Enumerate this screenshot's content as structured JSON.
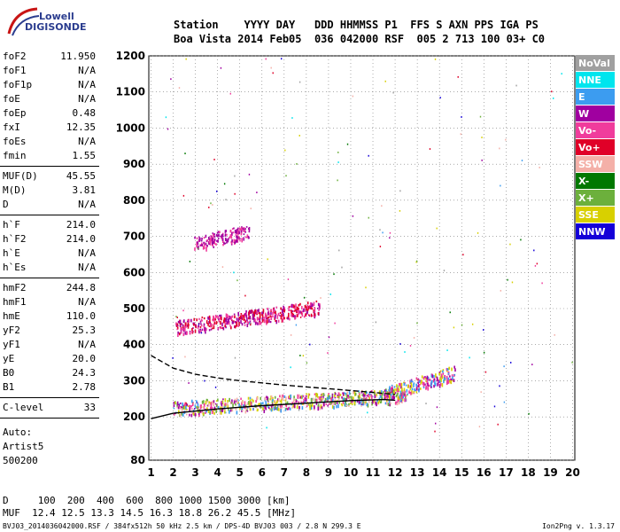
{
  "logo": {
    "line1": "Lowell",
    "line2": "DIGISONDE"
  },
  "header": {
    "line1": "Station    YYYY DAY   DDD HHMMSS P1  FFS S AXN PPS IGA PS",
    "line2": "Boa Vista 2014 Feb05  036 042000 RSF  005 2 713 100 03+ C0"
  },
  "params": {
    "group1": [
      {
        "label": "foF2",
        "value": "11.950"
      },
      {
        "label": "foF1",
        "value": "N/A"
      },
      {
        "label": "foF1p",
        "value": "N/A"
      },
      {
        "label": "foE",
        "value": "N/A"
      },
      {
        "label": "foEp",
        "value": "0.48"
      },
      {
        "label": "fxI",
        "value": "12.35"
      },
      {
        "label": "foEs",
        "value": "N/A"
      },
      {
        "label": "fmin",
        "value": "1.55"
      }
    ],
    "group2": [
      {
        "label": "MUF(D)",
        "value": "45.55"
      },
      {
        "label": "M(D)",
        "value": "3.81"
      },
      {
        "label": "D",
        "value": "N/A"
      }
    ],
    "group3": [
      {
        "label": "h`F",
        "value": "214.0"
      },
      {
        "label": "h`F2",
        "value": "214.0"
      },
      {
        "label": "h`E",
        "value": "N/A"
      },
      {
        "label": "h`Es",
        "value": "N/A"
      }
    ],
    "group4": [
      {
        "label": "hmF2",
        "value": "244.8"
      },
      {
        "label": "hmF1",
        "value": "N/A"
      },
      {
        "label": "hmE",
        "value": "110.0"
      },
      {
        "label": "yF2",
        "value": "25.3"
      },
      {
        "label": "yF1",
        "value": "N/A"
      },
      {
        "label": "yE",
        "value": "20.0"
      },
      {
        "label": "B0",
        "value": "24.3"
      },
      {
        "label": "B1",
        "value": "2.78"
      }
    ],
    "group5": [
      {
        "label": "C-level",
        "value": "33"
      }
    ]
  },
  "auto": {
    "line1": "Auto:",
    "line2": "Artist5",
    "line3": "500200"
  },
  "footer": {
    "d_row": "D     100  200  400  600  800 1000 1500 3000 [km]",
    "muf_row": "MUF  12.4 12.5 13.3 14.5 16.3 18.8 26.2 45.5 [MHz]",
    "file_info": "BVJ03_2014036042000.RSF / 384fx512h 50 kHz 2.5 km / DPS-4D BVJ03 003 / 2.8 N 299.3 E",
    "version": "Ion2Png v. 1.3.17"
  },
  "legend": [
    {
      "label": "NoVal",
      "color": "#a0a0a0"
    },
    {
      "label": "NNE",
      "color": "#00e5ee"
    },
    {
      "label": "E",
      "color": "#3c9cf0"
    },
    {
      "label": "W",
      "color": "#a000a0"
    },
    {
      "label": "Vo-",
      "color": "#f03c9c"
    },
    {
      "label": "Vo+",
      "color": "#e00028"
    },
    {
      "label": "SSW",
      "color": "#f4b0a8"
    },
    {
      "label": "X-",
      "color": "#007800"
    },
    {
      "label": "X+",
      "color": "#6cb03c"
    },
    {
      "label": "SSE",
      "color": "#d8d000"
    },
    {
      "label": "NNW",
      "color": "#1400d8"
    }
  ],
  "chart_data": {
    "type": "scatter",
    "x_ticks": [
      1,
      2,
      3,
      4,
      5,
      6,
      7,
      8,
      9,
      10,
      11,
      12,
      13,
      14,
      15,
      16,
      17,
      18,
      19,
      20
    ],
    "y_ticks": [
      80,
      200,
      300,
      400,
      500,
      600,
      700,
      800,
      900,
      1000,
      1100,
      1200
    ],
    "xlim": [
      0.9,
      20.1
    ],
    "ylim": [
      80,
      1200
    ],
    "grid": true,
    "legend_position": "right",
    "traces": [
      {
        "name": "F2 trace",
        "x": [
          2.0,
          12.5
        ],
        "y": [
          225,
          262
        ],
        "colors": [
          "Vo-",
          "W",
          "E",
          "SSW",
          "X+",
          "SSE"
        ]
      },
      {
        "name": "F2 extension",
        "x": [
          11.5,
          14.7
        ],
        "y": [
          262,
          325
        ],
        "colors": [
          "W",
          "Vo-",
          "SSE",
          "E"
        ]
      },
      {
        "name": "second hop",
        "x": [
          2.1,
          8.6
        ],
        "y": [
          448,
          505
        ],
        "colors": [
          "Vo-",
          "Vo+",
          "W"
        ]
      },
      {
        "name": "third hop",
        "x": [
          2.9,
          5.4
        ],
        "y": [
          680,
          715
        ],
        "colors": [
          "W",
          "Vo-"
        ]
      }
    ],
    "fitted_curves": [
      {
        "style": "solid",
        "points": [
          [
            1.0,
            195
          ],
          [
            2.0,
            210
          ],
          [
            4.0,
            222
          ],
          [
            6.0,
            231
          ],
          [
            8.0,
            238
          ],
          [
            10.0,
            245
          ],
          [
            11.5,
            248
          ],
          [
            12.0,
            246
          ]
        ]
      },
      {
        "style": "dashed",
        "points": [
          [
            1.0,
            370
          ],
          [
            2.0,
            335
          ],
          [
            3.0,
            318
          ],
          [
            4.0,
            308
          ],
          [
            5.0,
            300
          ],
          [
            7.0,
            288
          ],
          [
            9.0,
            278
          ],
          [
            11.0,
            268
          ],
          [
            12.0,
            262
          ]
        ]
      }
    ]
  }
}
